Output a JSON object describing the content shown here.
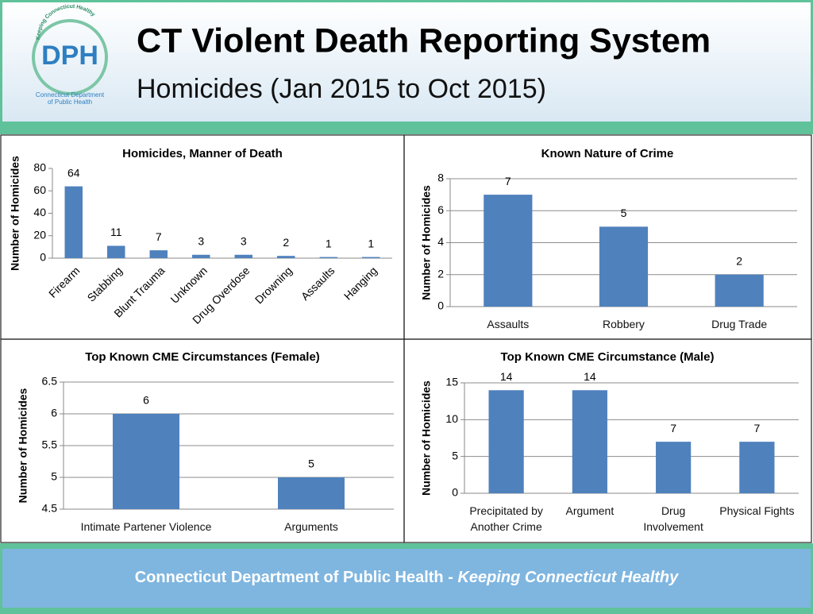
{
  "header": {
    "logo": {
      "letters": "DPH",
      "arc": "Keeping Connecticut Healthy",
      "caption": [
        "Connecticut Department",
        "of Public Health"
      ]
    },
    "title": "CT Violent Death Reporting System",
    "subtitle": "Homicides (Jan 2015 to Oct 2015)"
  },
  "chart_data": [
    {
      "type": "bar",
      "title": "Homicides, Manner of Death",
      "y_label": "Number of Homicides",
      "categories": [
        "Firearm",
        "Stabbing",
        "Blunt Trauma",
        "Unknown",
        "Drug Overdose",
        "Drowning",
        "Assaults",
        "Hanging"
      ],
      "values": [
        64,
        11,
        7,
        3,
        3,
        2,
        1,
        1
      ],
      "color": "#4f81bd",
      "ylim": [
        0,
        80
      ],
      "yticks": [
        0,
        20,
        40,
        60,
        80
      ],
      "grid": false
    },
    {
      "type": "bar",
      "title": "Known Nature of Crime",
      "y_label": "Number of Homicides",
      "categories": [
        "Assaults",
        "Robbery",
        "Drug Trade"
      ],
      "values": [
        7,
        5,
        2
      ],
      "color": "#4f81bd",
      "ylim": [
        0,
        8
      ],
      "yticks": [
        0,
        2,
        4,
        6,
        8
      ],
      "grid": true
    },
    {
      "type": "bar",
      "title": "Top Known CME Circumstances (Female)",
      "y_label": "Number of Homicides",
      "categories": [
        "Intimate Partener Violence",
        "Arguments"
      ],
      "values": [
        6,
        5
      ],
      "color": "#4f81bd",
      "ylim": [
        4.5,
        6.5
      ],
      "yticks": [
        4.5,
        5,
        5.5,
        6,
        6.5
      ],
      "grid": true
    },
    {
      "type": "bar",
      "title": "Top Known CME Circumstance (Male)",
      "y_label": "Number of Homicides",
      "categories": [
        "Precipitated by Another Crime",
        "Argument",
        "Drug Involvement",
        "Physical Fights"
      ],
      "values": [
        14,
        14,
        7,
        7
      ],
      "color": "#4f81bd",
      "ylim": [
        0,
        15
      ],
      "yticks": [
        0,
        5,
        10,
        15
      ],
      "grid": true
    }
  ],
  "footer": {
    "organization": "Connecticut Department of Public Health",
    "separator": "-",
    "tagline": "Keeping Connecticut Healthy"
  }
}
